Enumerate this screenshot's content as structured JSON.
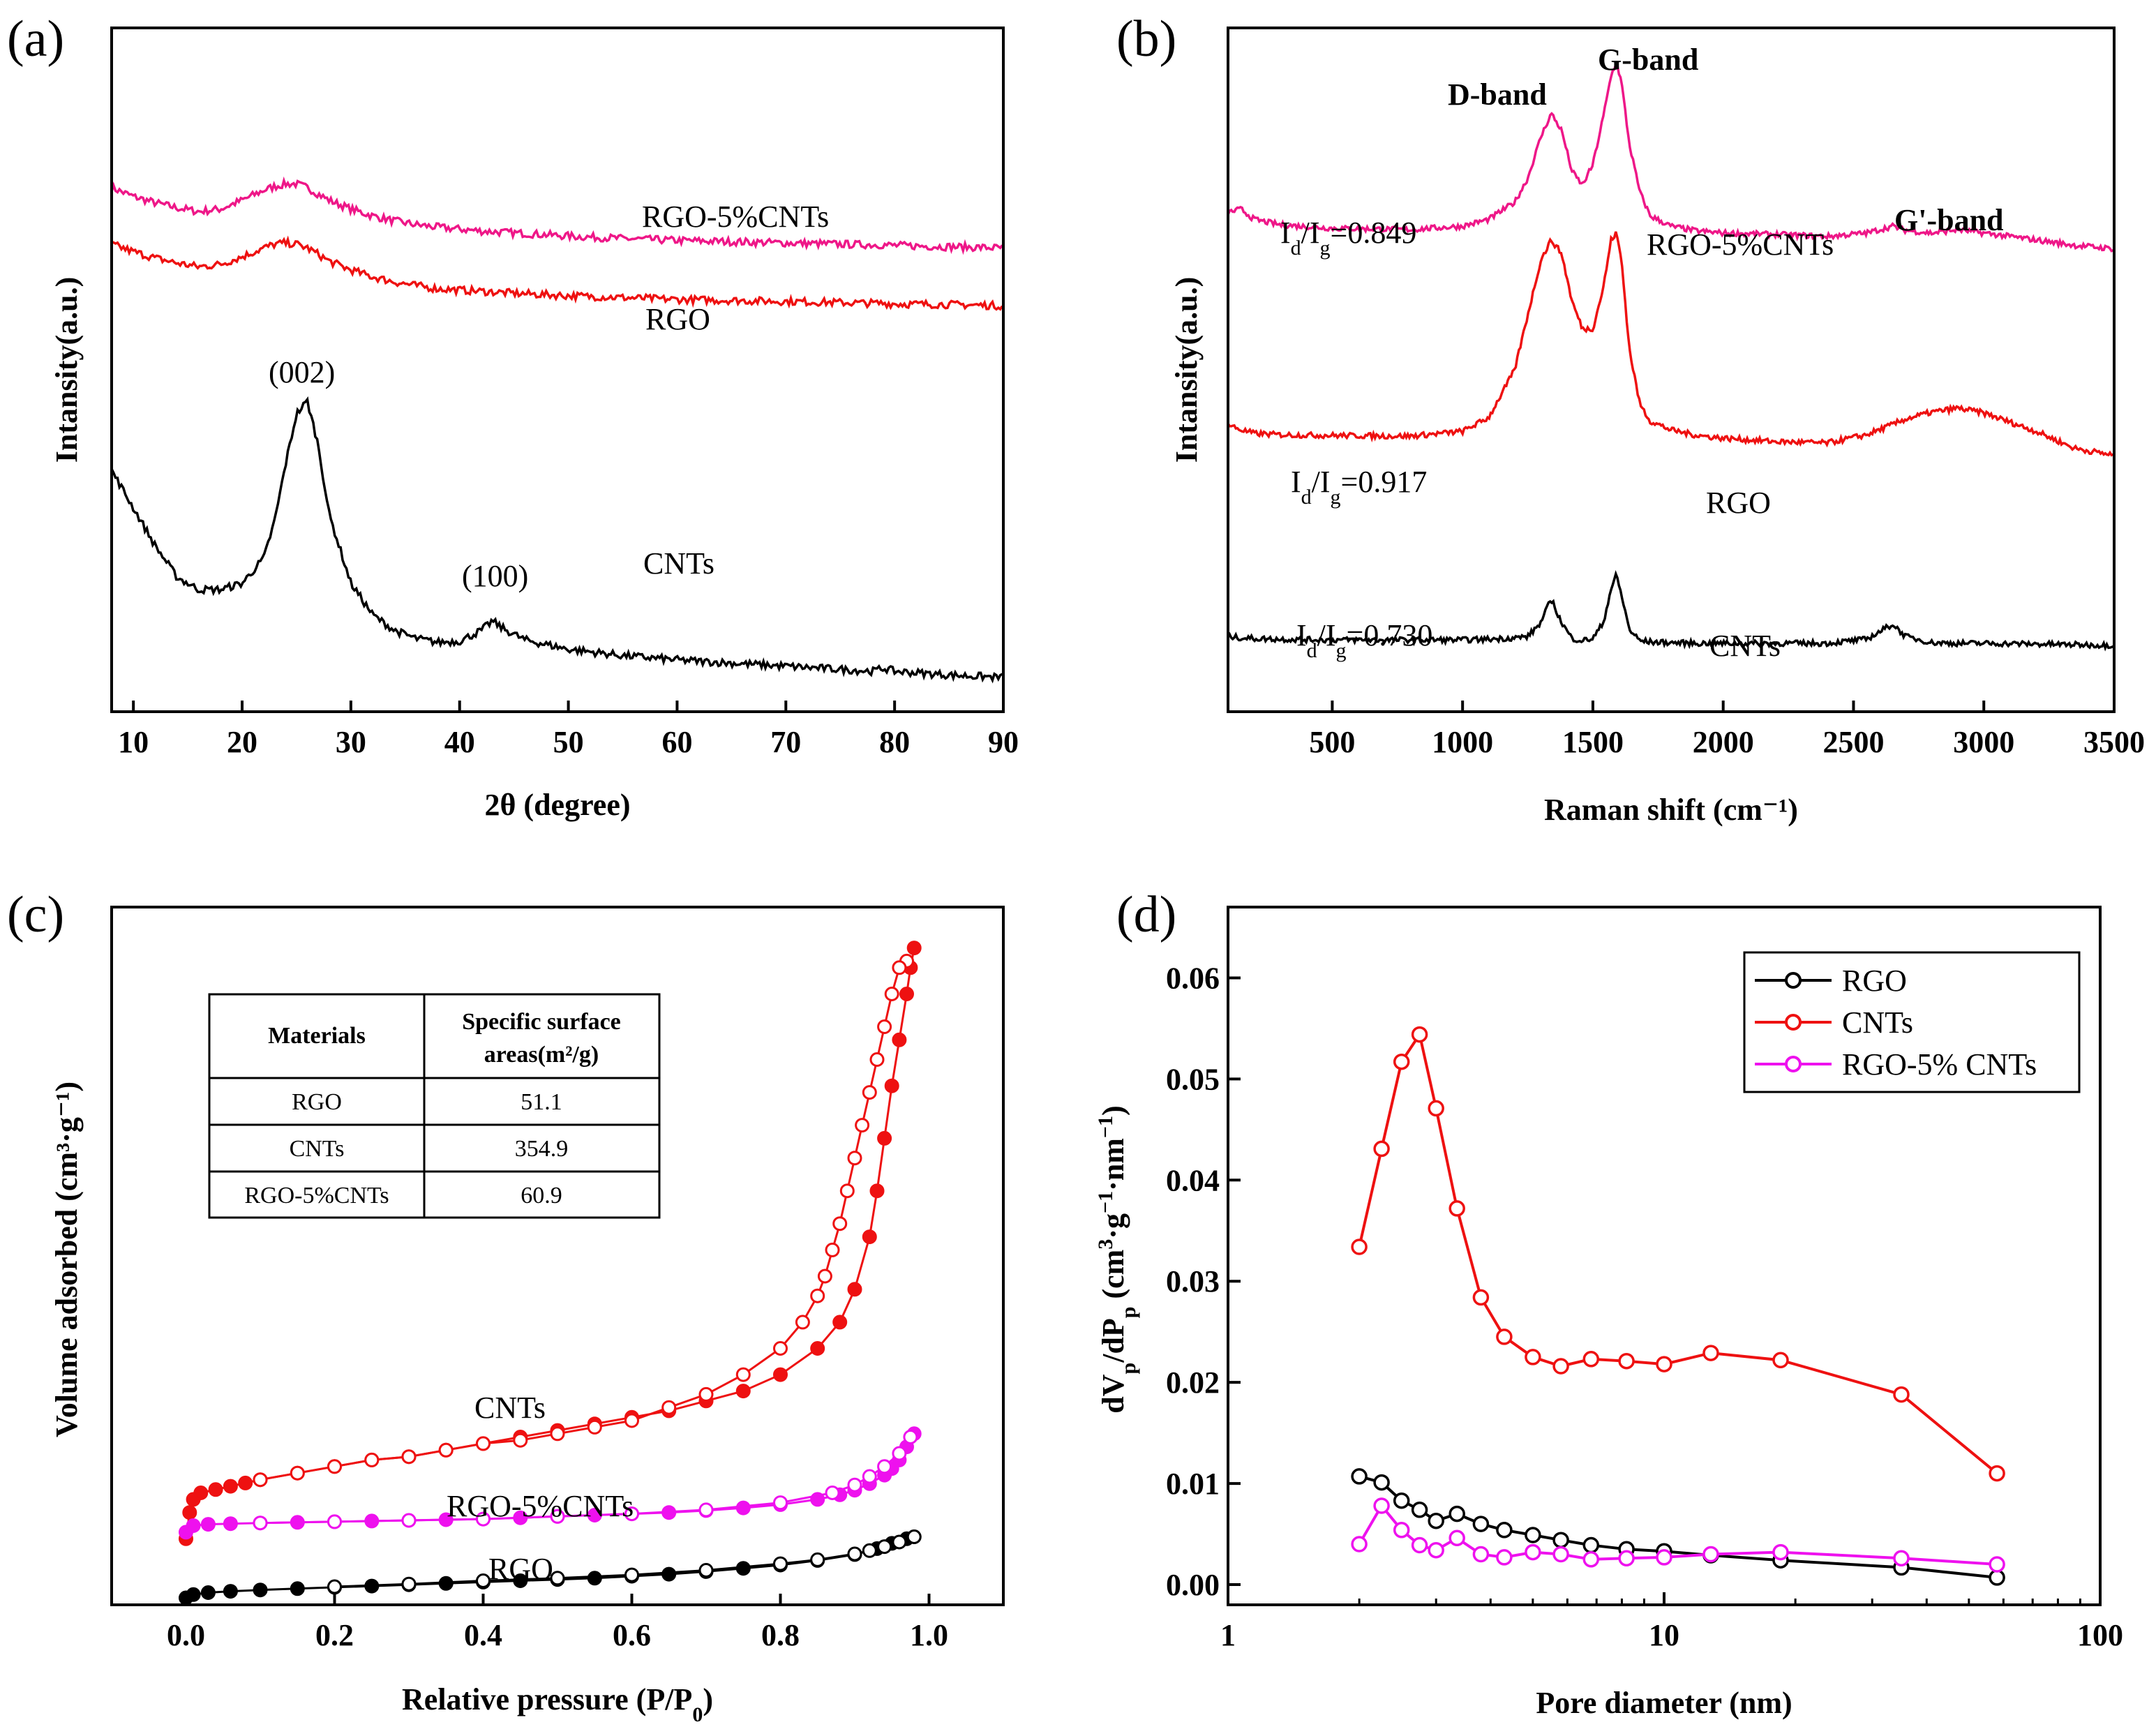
{
  "panel_letters": [
    "(a)",
    "(b)",
    "(c)",
    "(d)"
  ],
  "colors": {
    "black": "#000000",
    "red": "#ee1111",
    "pink": "#ee1788",
    "magenta": "#ee11ee",
    "axis": "#000000"
  },
  "chart_data": [
    {
      "id": "a",
      "type": "line",
      "title": "",
      "xlabel": "2θ (degree)",
      "ylabel": "Intansity(a.u.)",
      "xlim": [
        8,
        90
      ],
      "ylim": [
        0,
        1
      ],
      "xticks": [
        10,
        20,
        30,
        40,
        50,
        60,
        70,
        80,
        90
      ],
      "x": [
        8,
        10,
        12,
        14,
        16,
        18,
        20,
        22,
        23,
        24,
        25,
        26,
        27,
        28,
        30,
        32,
        34,
        36,
        38,
        40,
        42,
        43,
        44,
        46,
        50,
        55,
        60,
        70,
        78,
        79,
        80,
        85,
        90
      ],
      "series": [
        {
          "name": "RGO-5%CNTs",
          "color": "#ee1788",
          "values": [
            0.79,
            0.776,
            0.766,
            0.758,
            0.752,
            0.756,
            0.77,
            0.786,
            0.792,
            0.796,
            0.796,
            0.79,
            0.78,
            0.77,
            0.756,
            0.745,
            0.737,
            0.731,
            0.727,
            0.724,
            0.721,
            0.72,
            0.719,
            0.717,
            0.713,
            0.709,
            0.706,
            0.702,
            0.699,
            0.699,
            0.698,
            0.696,
            0.694
          ]
        },
        {
          "name": "RGO",
          "color": "#ee1111",
          "values": [
            0.7,
            0.688,
            0.678,
            0.67,
            0.664,
            0.668,
            0.68,
            0.694,
            0.7,
            0.702,
            0.7,
            0.694,
            0.684,
            0.673,
            0.659,
            0.648,
            0.64,
            0.634,
            0.629,
            0.627,
            0.625,
            0.624,
            0.623,
            0.621,
            0.618,
            0.615,
            0.612,
            0.609,
            0.606,
            0.606,
            0.605,
            0.604,
            0.602
          ]
        },
        {
          "name": "CNTs",
          "color": "#000000",
          "values": [
            0.34,
            0.28,
            0.22,
            0.17,
            0.15,
            0.15,
            0.16,
            0.2,
            0.26,
            0.35,
            0.43,
            0.45,
            0.38,
            0.27,
            0.16,
            0.11,
            0.085,
            0.072,
            0.066,
            0.068,
            0.085,
            0.1,
            0.088,
            0.07,
            0.055,
            0.045,
            0.038,
            0.028,
            0.02,
            0.025,
            0.02,
            0.014,
            0.01
          ]
        }
      ],
      "annotations": {
        "rgo_cnts": "RGO-5%CNTs",
        "rgo": "RGO",
        "cnts": "CNTs",
        "peak_002": "(002)",
        "peak_100": "(100)"
      }
    },
    {
      "id": "b",
      "type": "line",
      "title": "",
      "xlabel": "Raman shift (cm⁻¹)",
      "ylabel": "Intansity(a.u.)",
      "xlim": [
        100,
        3500
      ],
      "ylim": [
        0,
        1
      ],
      "xticks": [
        500,
        1000,
        1500,
        2000,
        2500,
        3000,
        3500
      ],
      "x": [
        100,
        150,
        200,
        300,
        500,
        800,
        1000,
        1100,
        1200,
        1250,
        1300,
        1340,
        1380,
        1420,
        1460,
        1500,
        1540,
        1570,
        1590,
        1610,
        1640,
        1680,
        1720,
        1800,
        1900,
        2000,
        2200,
        2400,
        2550,
        2650,
        2700,
        2800,
        2900,
        3000,
        3200,
        3350,
        3500
      ],
      "series": [
        {
          "name": "RGO-5%CNTs",
          "color": "#ee1788",
          "values": [
            0.73,
            0.735,
            0.72,
            0.712,
            0.707,
            0.705,
            0.71,
            0.72,
            0.745,
            0.78,
            0.84,
            0.875,
            0.85,
            0.79,
            0.77,
            0.8,
            0.87,
            0.93,
            0.95,
            0.92,
            0.83,
            0.76,
            0.725,
            0.71,
            0.703,
            0.7,
            0.698,
            0.695,
            0.7,
            0.71,
            0.704,
            0.7,
            0.705,
            0.7,
            0.69,
            0.682,
            0.677
          ]
        },
        {
          "name": "RGO",
          "color": "#ee1111",
          "values": [
            0.42,
            0.412,
            0.407,
            0.405,
            0.404,
            0.403,
            0.41,
            0.43,
            0.5,
            0.58,
            0.66,
            0.69,
            0.67,
            0.6,
            0.56,
            0.56,
            0.62,
            0.69,
            0.7,
            0.66,
            0.53,
            0.45,
            0.425,
            0.412,
            0.404,
            0.4,
            0.395,
            0.393,
            0.405,
            0.42,
            0.428,
            0.438,
            0.444,
            0.437,
            0.41,
            0.385,
            0.375
          ]
        },
        {
          "name": "CNTs",
          "color": "#000000",
          "values": [
            0.11,
            0.108,
            0.107,
            0.106,
            0.105,
            0.105,
            0.105,
            0.106,
            0.108,
            0.11,
            0.13,
            0.165,
            0.13,
            0.107,
            0.104,
            0.107,
            0.13,
            0.18,
            0.2,
            0.17,
            0.12,
            0.104,
            0.102,
            0.101,
            0.1,
            0.1,
            0.1,
            0.1,
            0.106,
            0.128,
            0.11,
            0.101,
            0.1,
            0.1,
            0.099,
            0.098,
            0.097
          ]
        }
      ],
      "annotations": {
        "d_band": "D-band",
        "g_band": "G-band",
        "g2_band": "G'-band",
        "ratio_label": "I",
        "sub_d": "d",
        "slash": "/I",
        "sub_g": "g",
        "ratio_rgo_cnts": "=0.849",
        "ratio_rgo": "=0.917",
        "ratio_cnts": "=0.730",
        "name_rgo_cnts": "RGO-5%CNTs",
        "name_rgo": "RGO",
        "name_cnts": "CNTs"
      }
    },
    {
      "id": "c",
      "type": "scatter",
      "title": "",
      "xlabel": "Relative pressure (P/P",
      "xlabel_sub": "0",
      "xlabel_end": ")",
      "ylabel": "Volume adsorbed (cm³·g⁻¹)",
      "xlim": [
        -0.1,
        1.1
      ],
      "ylim": [
        0,
        1
      ],
      "xticks": [
        0.0,
        0.2,
        0.4,
        0.6,
        0.8,
        1.0
      ],
      "xtick_labels": [
        "0.0",
        "0.2",
        "0.4",
        "0.6",
        "0.8",
        "1.0"
      ],
      "series": [
        {
          "name": "CNTs adsorption",
          "color": "#ee1111",
          "filled": true,
          "x": [
            0.0,
            0.005,
            0.01,
            0.02,
            0.04,
            0.06,
            0.08,
            0.1,
            0.15,
            0.2,
            0.25,
            0.3,
            0.35,
            0.4,
            0.45,
            0.5,
            0.55,
            0.6,
            0.65,
            0.7,
            0.75,
            0.8,
            0.85,
            0.88,
            0.9,
            0.92,
            0.93,
            0.94,
            0.95,
            0.96,
            0.97,
            0.975,
            0.98
          ],
          "y": [
            0.09,
            0.13,
            0.15,
            0.16,
            0.165,
            0.17,
            0.175,
            0.18,
            0.19,
            0.2,
            0.21,
            0.215,
            0.225,
            0.235,
            0.245,
            0.255,
            0.265,
            0.275,
            0.285,
            0.3,
            0.315,
            0.34,
            0.38,
            0.42,
            0.47,
            0.55,
            0.62,
            0.7,
            0.78,
            0.85,
            0.92,
            0.96,
            0.99
          ]
        },
        {
          "name": "CNTs desorption",
          "color": "#ee1111",
          "filled": false,
          "x": [
            0.97,
            0.96,
            0.95,
            0.94,
            0.93,
            0.92,
            0.91,
            0.9,
            0.89,
            0.88,
            0.87,
            0.86,
            0.85,
            0.83,
            0.8,
            0.75,
            0.7,
            0.65,
            0.6,
            0.55,
            0.5,
            0.45,
            0.4,
            0.35,
            0.3,
            0.25,
            0.2,
            0.15,
            0.1
          ],
          "y": [
            0.97,
            0.96,
            0.92,
            0.87,
            0.82,
            0.77,
            0.72,
            0.67,
            0.62,
            0.57,
            0.53,
            0.49,
            0.46,
            0.42,
            0.38,
            0.34,
            0.31,
            0.29,
            0.27,
            0.26,
            0.25,
            0.24,
            0.235,
            0.225,
            0.215,
            0.21,
            0.2,
            0.19,
            0.18
          ]
        },
        {
          "name": "RGO-5%CNTs adsorption",
          "color": "#ee11ee",
          "filled": true,
          "x": [
            0.0,
            0.01,
            0.03,
            0.06,
            0.1,
            0.15,
            0.2,
            0.25,
            0.3,
            0.35,
            0.4,
            0.45,
            0.5,
            0.55,
            0.6,
            0.65,
            0.7,
            0.75,
            0.8,
            0.85,
            0.88,
            0.9,
            0.92,
            0.94,
            0.95,
            0.96,
            0.97,
            0.98
          ],
          "y": [
            0.1,
            0.11,
            0.112,
            0.113,
            0.114,
            0.115,
            0.116,
            0.117,
            0.118,
            0.119,
            0.12,
            0.122,
            0.124,
            0.126,
            0.128,
            0.13,
            0.133,
            0.137,
            0.142,
            0.15,
            0.157,
            0.164,
            0.174,
            0.187,
            0.197,
            0.21,
            0.23,
            0.25
          ]
        },
        {
          "name": "RGO-5%CNTs desorption",
          "color": "#ee11ee",
          "filled": false,
          "x": [
            0.975,
            0.96,
            0.94,
            0.92,
            0.9,
            0.87,
            0.8,
            0.7,
            0.6,
            0.5,
            0.4,
            0.3,
            0.2,
            0.1
          ],
          "y": [
            0.245,
            0.22,
            0.2,
            0.185,
            0.172,
            0.16,
            0.145,
            0.134,
            0.128,
            0.124,
            0.12,
            0.118,
            0.116,
            0.114
          ]
        },
        {
          "name": "RGO adsorption",
          "color": "#000000",
          "filled": true,
          "x": [
            0.0,
            0.01,
            0.03,
            0.06,
            0.1,
            0.15,
            0.2,
            0.25,
            0.3,
            0.35,
            0.4,
            0.45,
            0.5,
            0.55,
            0.6,
            0.65,
            0.7,
            0.75,
            0.8,
            0.85,
            0.9,
            0.93,
            0.95,
            0.97,
            0.98
          ],
          "y": [
            0.0,
            0.005,
            0.008,
            0.01,
            0.012,
            0.014,
            0.016,
            0.018,
            0.02,
            0.022,
            0.024,
            0.026,
            0.028,
            0.03,
            0.033,
            0.036,
            0.04,
            0.045,
            0.05,
            0.057,
            0.066,
            0.075,
            0.083,
            0.09,
            0.093
          ]
        },
        {
          "name": "RGO desorption",
          "color": "#000000",
          "filled": false,
          "x": [
            0.98,
            0.96,
            0.94,
            0.92,
            0.9,
            0.85,
            0.8,
            0.7,
            0.6,
            0.5,
            0.4,
            0.3,
            0.2
          ],
          "y": [
            0.093,
            0.085,
            0.078,
            0.072,
            0.067,
            0.058,
            0.052,
            0.042,
            0.035,
            0.03,
            0.026,
            0.021,
            0.017
          ]
        }
      ],
      "annotations": {
        "cnts": "CNTs",
        "rgo_cnts": "RGO-5%CNTs",
        "rgo": "RGO"
      },
      "table": {
        "header_materials": "Materials",
        "header_ssa_line1": "Specific surface",
        "header_ssa_line2": "areas(m²/g)",
        "rows": [
          {
            "material": "RGO",
            "value": "51.1"
          },
          {
            "material": "CNTs",
            "value": "354.9"
          },
          {
            "material": "RGO-5%CNTs",
            "value": "60.9"
          }
        ]
      }
    },
    {
      "id": "d",
      "type": "line",
      "title": "",
      "xlabel": "Pore diameter (nm)",
      "ylabel": "dVp/dPp (cm³·g⁻¹·nm⁻¹)",
      "xscale": "log",
      "xlim": [
        1,
        100
      ],
      "ylim": [
        -0.002,
        0.067
      ],
      "xticks": [
        1,
        10,
        100
      ],
      "yticks": [
        0.0,
        0.01,
        0.02,
        0.03,
        0.04,
        0.05,
        0.06
      ],
      "ytick_labels": [
        "0.00",
        "0.01",
        "0.02",
        "0.03",
        "0.04",
        "0.05",
        "0.06"
      ],
      "series": [
        {
          "name": "RGO",
          "color": "#000000",
          "x": [
            2.0,
            2.25,
            2.5,
            2.75,
            3.0,
            3.35,
            3.8,
            4.3,
            5.0,
            5.8,
            6.8,
            8.2,
            10.0,
            12.8,
            18.5,
            35.0,
            58.0
          ],
          "y": [
            0.0107,
            0.0101,
            0.0083,
            0.0074,
            0.0063,
            0.007,
            0.006,
            0.0054,
            0.0049,
            0.0044,
            0.0039,
            0.0035,
            0.0033,
            0.0029,
            0.0024,
            0.0017,
            0.0007
          ]
        },
        {
          "name": "CNTs",
          "color": "#ee1111",
          "x": [
            2.0,
            2.25,
            2.5,
            2.75,
            3.0,
            3.35,
            3.8,
            4.3,
            5.0,
            5.8,
            6.8,
            8.2,
            10.0,
            12.8,
            18.5,
            35.0,
            58.0
          ],
          "y": [
            0.0334,
            0.0431,
            0.0517,
            0.0544,
            0.0471,
            0.0372,
            0.0284,
            0.0245,
            0.0225,
            0.0216,
            0.0223,
            0.0221,
            0.0218,
            0.0229,
            0.0222,
            0.0188,
            0.011
          ]
        },
        {
          "name": "RGO-5% CNTs",
          "color": "#ee11ee",
          "x": [
            2.0,
            2.25,
            2.5,
            2.75,
            3.0,
            3.35,
            3.8,
            4.3,
            5.0,
            5.8,
            6.8,
            8.2,
            10.0,
            12.8,
            18.5,
            35.0,
            58.0
          ],
          "y": [
            0.004,
            0.0078,
            0.0054,
            0.0039,
            0.0034,
            0.0046,
            0.003,
            0.0027,
            0.0032,
            0.003,
            0.0025,
            0.0026,
            0.0027,
            0.003,
            0.0032,
            0.0026,
            0.002
          ]
        }
      ],
      "legend": {
        "position": "top-right",
        "entries": [
          "RGO",
          "CNTs",
          "RGO-5% CNTs"
        ]
      },
      "ylabel_parts": {
        "a": "dV",
        "b": "p",
        "c": "/dP",
        "d": "p",
        "e": " (cm",
        "f": "3",
        "g": "·g",
        "h": "−1",
        "i": "·nm",
        "j": "−1",
        "k": ")"
      }
    }
  ]
}
